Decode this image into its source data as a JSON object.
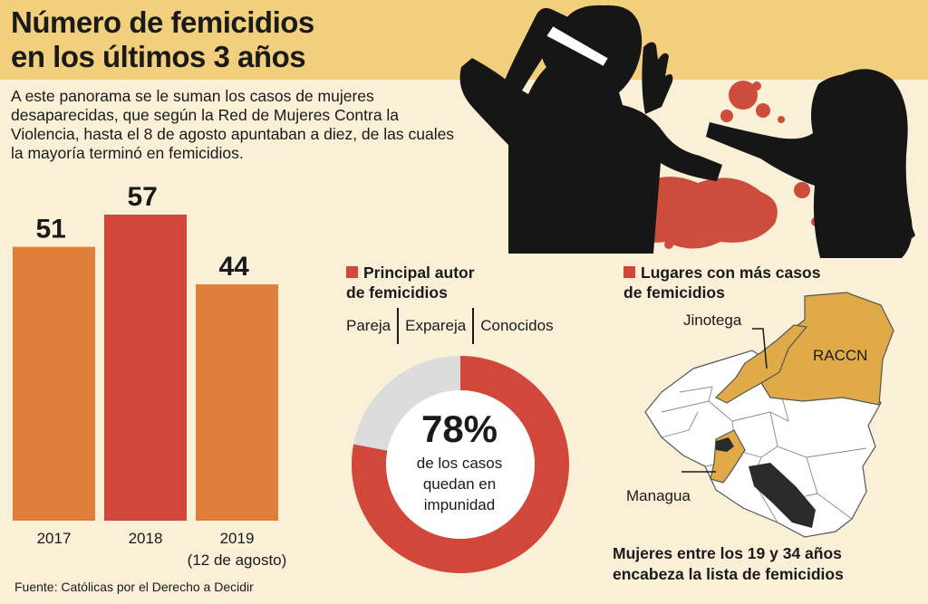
{
  "header": {
    "title_line1": "Número de femicidios",
    "title_line2": "en los últimos 3 años"
  },
  "intro": "A este panorama se le suman los casos de mujeres desaparecidas, que según la Red de Mujeres Contra la Violencia, hasta el 8 de agosto apuntaban a diez, de las cuales la mayoría terminó en femicidios.",
  "colors": {
    "accent_red": "#d1473a",
    "orange": "#e07f3a",
    "gold": "#e0aa48",
    "title_band": "#f2cf7c",
    "background": "#faf0d8"
  },
  "chart_data": [
    {
      "type": "bar",
      "categories": [
        "2017",
        "2018",
        "2019"
      ],
      "category_notes": [
        "",
        "",
        "(12 de agosto)"
      ],
      "values": [
        51,
        57,
        44
      ],
      "bar_colors": [
        "#e07f3a",
        "#d1473a",
        "#e07f3a"
      ],
      "ylim": [
        0,
        57
      ]
    },
    {
      "type": "pie",
      "style": "donut",
      "slices": [
        {
          "label": "de los casos quedan en impunidad",
          "value": 78,
          "color": "#d1473a"
        },
        {
          "label": "",
          "value": 22,
          "color": "#dcdcdc"
        }
      ]
    }
  ],
  "donut": {
    "percent_label": "78%",
    "line1": "de los casos",
    "line2": "quedan en",
    "line3": "impunidad"
  },
  "authors": {
    "heading_line1": "Principal autor",
    "heading_line2": "de femicidios",
    "items": [
      "Pareja",
      "Expareja",
      "Conocidos"
    ]
  },
  "places": {
    "heading_line1": "Lugares con más casos",
    "heading_line2": "de femicidios",
    "labels": {
      "jinotega": "Jinotega",
      "raccn": "RACCN",
      "managua": "Managua"
    }
  },
  "age_note": {
    "line1": "Mujeres entre los 19 y 34 años",
    "line2": "encabeza la lista de femicidios"
  },
  "source": "Fuente: Católicas por el Derecho a Decidir"
}
